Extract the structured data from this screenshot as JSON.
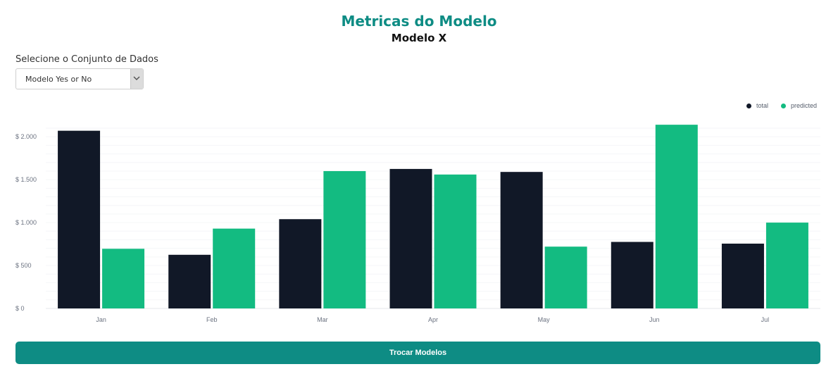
{
  "header": {
    "title": "Metricas do Modelo",
    "subtitle": "Modelo X"
  },
  "dataset_select": {
    "label": "Selecione o Conjunto de Dados",
    "selected": "Modelo Yes or No"
  },
  "footer": {
    "button_label": "Trocar Modelos"
  },
  "colors": {
    "accent": "#0e8c84",
    "total": "#111827",
    "predicted": "#13bb81"
  },
  "chart_data": {
    "type": "bar",
    "title": "",
    "xlabel": "",
    "ylabel": "",
    "categories": [
      "Jan",
      "Feb",
      "Mar",
      "Apr",
      "May",
      "Jun",
      "Jul"
    ],
    "series": [
      {
        "name": "total",
        "values": [
          2070,
          625,
          1040,
          1625,
          1590,
          775,
          755
        ]
      },
      {
        "name": "predicted",
        "values": [
          695,
          930,
          1600,
          1560,
          720,
          2140,
          1000
        ]
      }
    ],
    "ylim": [
      0,
      2100
    ],
    "yticks": [
      {
        "value": 0,
        "label": "$ 0"
      },
      {
        "value": 500,
        "label": "$ 500"
      },
      {
        "value": 1000,
        "label": "$ 1.000"
      },
      {
        "value": 1500,
        "label": "$ 1.500"
      },
      {
        "value": 2000,
        "label": "$ 2.000"
      }
    ],
    "grid": true,
    "legend_position": "top-right"
  }
}
